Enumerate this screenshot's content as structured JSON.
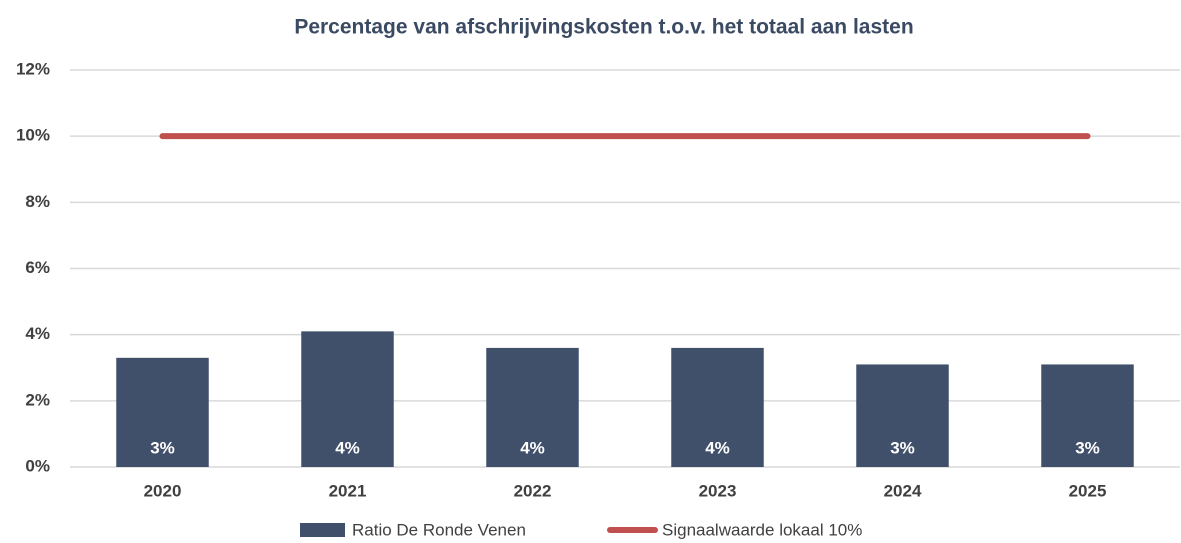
{
  "chart_data": {
    "type": "bar",
    "title": "Percentage van afschrijvingskosten t.o.v. het totaal aan lasten",
    "categories": [
      "2020",
      "2021",
      "2022",
      "2023",
      "2024",
      "2025"
    ],
    "series": [
      {
        "name": "Ratio De Ronde Venen",
        "type": "bar",
        "color": "#41506a",
        "values": [
          3.3,
          4.1,
          3.6,
          3.6,
          3.1,
          3.1
        ],
        "value_labels": [
          "3%",
          "4%",
          "4%",
          "4%",
          "3%",
          "3%"
        ]
      },
      {
        "name": "Signaalwaarde lokaal 10%",
        "type": "line",
        "color": "#c0504d",
        "values": [
          10,
          10,
          10,
          10,
          10,
          10
        ]
      }
    ],
    "ylim": [
      0,
      12
    ],
    "yticks": [
      {
        "value": 0,
        "label": "0%"
      },
      {
        "value": 2,
        "label": "2%"
      },
      {
        "value": 4,
        "label": "4%"
      },
      {
        "value": 6,
        "label": "6%"
      },
      {
        "value": 8,
        "label": "8%"
      },
      {
        "value": 10,
        "label": "10%"
      },
      {
        "value": 12,
        "label": "12%"
      }
    ],
    "grid": true,
    "legend": "bottom"
  }
}
